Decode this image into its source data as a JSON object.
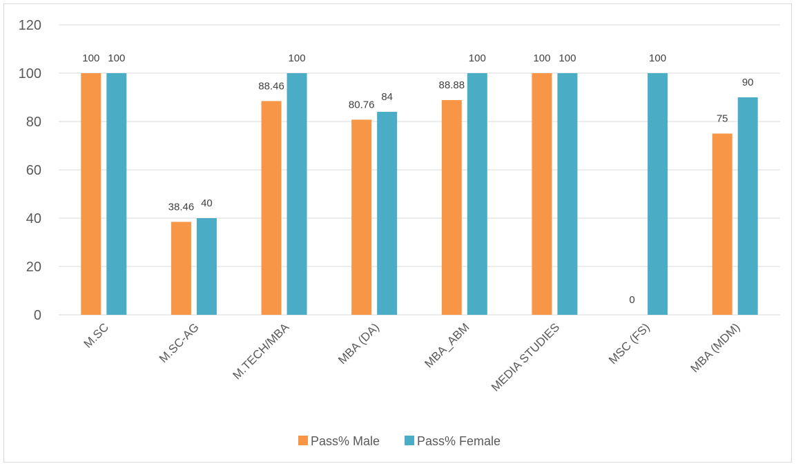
{
  "chart_data": {
    "type": "bar",
    "categories": [
      "M.SC",
      "M.SC-AG",
      "M.TECH/MBA",
      "MBA (DA)",
      "MBA_ABM",
      "MEDIA STUDIES",
      "MSC (FS)",
      "MBA (MDM)"
    ],
    "series": [
      {
        "name": "Pass% Male",
        "values": [
          100,
          38.46,
          88.46,
          80.76,
          88.88,
          100,
          0,
          75
        ],
        "color": "#F79646"
      },
      {
        "name": "Pass% Female",
        "values": [
          100,
          40,
          100,
          84,
          100,
          100,
          100,
          90
        ],
        "color": "#4BACC6"
      }
    ],
    "ylim": [
      0,
      120
    ],
    "yticks": [
      0,
      20,
      40,
      60,
      80,
      100,
      120
    ],
    "grid": true,
    "legend": "bottom",
    "data_labels": true
  }
}
